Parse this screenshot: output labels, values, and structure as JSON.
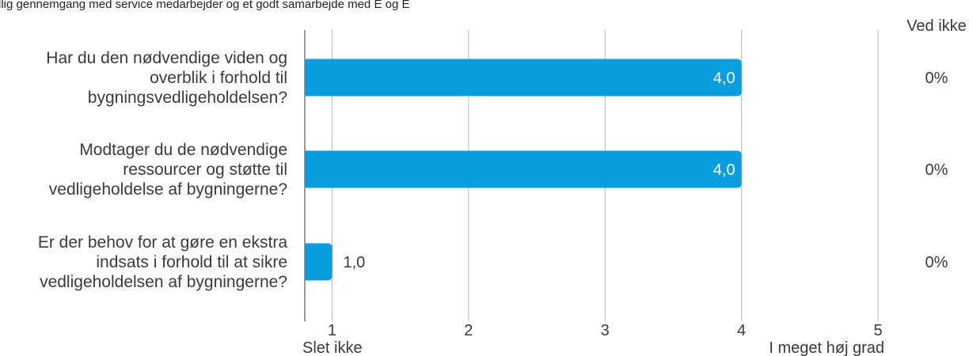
{
  "top_caption": "llig gennemgang med service medarbejder og et godt samarbejde med E og E",
  "chart_data": {
    "type": "bar",
    "orientation": "horizontal",
    "categories": [
      [
        "Har du den nødvendige viden og",
        "overblik i forhold til",
        "bygningsvedligeholdelsen?"
      ],
      [
        "Modtager du de nødvendige",
        "ressourcer og støtte til",
        "vedligeholdelse af bygningerne?"
      ],
      [
        "Er der behov for at gøre en ekstra",
        "indsats i forhold til at sikre",
        "vedligeholdelsen af bygningerne?"
      ]
    ],
    "values": [
      4.0,
      4.0,
      1.0
    ],
    "value_labels": [
      "4,0",
      "4,0",
      "1,0"
    ],
    "xlim": [
      0.8,
      5
    ],
    "ticks": [
      1,
      2,
      3,
      4,
      5
    ],
    "tick_labels": [
      "1",
      "2",
      "3",
      "4",
      "5"
    ],
    "scale_low_label": "Slet ikke",
    "scale_high_label": "I meget høj grad",
    "grid": true,
    "bar_color": "#0a9ee0",
    "ved_ikke_header": "Ved ikke",
    "ved_ikke_values": [
      "0%",
      "0%",
      "0%"
    ]
  }
}
